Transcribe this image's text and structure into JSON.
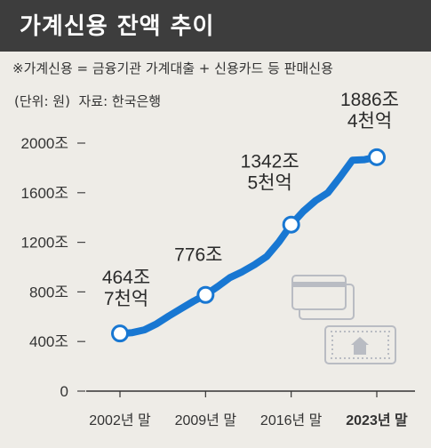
{
  "header": {
    "title": "가계신용 잔액 추이"
  },
  "note": "※가계신용 = 금융기관 가계대출 + 신용카드 등 판매신용",
  "meta": {
    "unit": "(단위: 원)",
    "source": "자료: 한국은행"
  },
  "colors": {
    "line": "#1877d2",
    "header_bg": "#3d3d3d",
    "marker_fill": "#ffffff"
  },
  "chart_data": {
    "type": "line",
    "x_labels": [
      "2002년 말",
      "2009년 말",
      "2016년 말",
      "2023년 말"
    ],
    "x_label_bold_index": 3,
    "y_ticks": [
      "0",
      "400조",
      "800조",
      "1200조",
      "1600조",
      "2000조"
    ],
    "ylim": [
      0,
      2000
    ],
    "series": [
      {
        "x": [
          2002,
          2003,
          2004,
          2005,
          2006,
          2007,
          2008,
          2009,
          2010,
          2011,
          2012,
          2013,
          2014,
          2015,
          2016,
          2017,
          2018,
          2019,
          2020,
          2021,
          2022,
          2023
        ],
        "values": [
          464.7,
          472,
          494,
          543,
          606,
          665,
          724,
          776,
          844,
          916,
          963,
          1019,
          1085,
          1203,
          1342.5,
          1450,
          1536,
          1600,
          1726,
          1862,
          1867,
          1886.4
        ]
      }
    ],
    "highlighted_points": [
      {
        "x": 2002,
        "value": 464.7,
        "label_lines": [
          "464조",
          "7천억"
        ]
      },
      {
        "x": 2009,
        "value": 776,
        "label_lines": [
          "776조"
        ]
      },
      {
        "x": 2016,
        "value": 1342.5,
        "label_lines": [
          "1342조",
          "5천억"
        ]
      },
      {
        "x": 2023,
        "value": 1886.4,
        "label_lines": [
          "1886조",
          "4천억"
        ]
      }
    ],
    "grid": false
  },
  "icons": [
    "credit-card-icon",
    "house-card-icon"
  ]
}
